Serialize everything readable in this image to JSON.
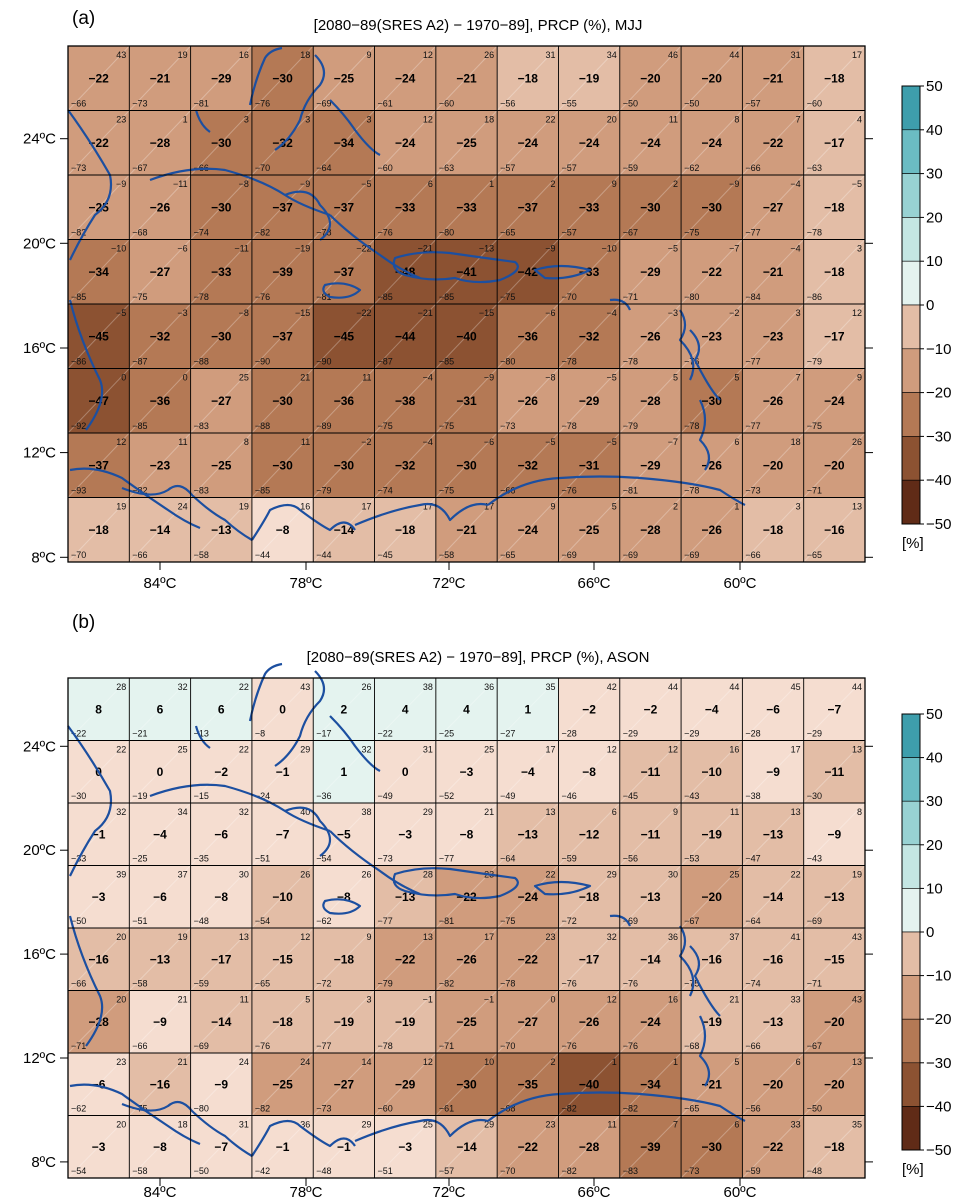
{
  "chart_data": [
    {
      "type": "heatmap",
      "panel_label": "(a)",
      "title": "[2080−89(SRES A2) − 1970−89], PRCP (%), MJJ",
      "x_ticks": [
        "84ºC",
        "78ºC",
        "72ºC",
        "66ºC",
        "60ºC"
      ],
      "y_ticks": [
        "24ºC",
        "20ºC",
        "16ºC",
        "12ºC",
        "8ºC"
      ],
      "mean": [
        [
          -22,
          -21,
          -29,
          -30,
          -25,
          -24,
          -21,
          -18,
          -19,
          -20,
          -20,
          -21,
          -18
        ],
        [
          -22,
          -28,
          -30,
          -32,
          -34,
          -24,
          -25,
          -24,
          -24,
          -24,
          -24,
          -22,
          -17
        ],
        [
          -25,
          -26,
          -30,
          -37,
          -37,
          -33,
          -33,
          -37,
          -33,
          -30,
          -30,
          -27,
          -18
        ],
        [
          -34,
          -27,
          -33,
          -39,
          -37,
          -48,
          -41,
          -42,
          -33,
          -29,
          -22,
          -21,
          -18
        ],
        [
          -45,
          -32,
          -30,
          -37,
          -45,
          -44,
          -40,
          -36,
          -32,
          -26,
          -23,
          -23,
          -17
        ],
        [
          -47,
          -36,
          -27,
          -30,
          -36,
          -38,
          -31,
          -26,
          -29,
          -28,
          -30,
          -26,
          -24
        ],
        [
          -37,
          -23,
          -25,
          -30,
          -30,
          -32,
          -30,
          -32,
          -31,
          -29,
          -26,
          -20,
          -20
        ],
        [
          -18,
          -14,
          -13,
          -8,
          -14,
          -18,
          -21,
          -24,
          -25,
          -28,
          -26,
          -18,
          -16
        ]
      ],
      "max": [
        [
          43,
          19,
          16,
          18,
          9,
          12,
          26,
          31,
          34,
          46,
          44,
          31,
          17
        ],
        [
          23,
          1,
          3,
          3,
          3,
          12,
          18,
          22,
          20,
          11,
          8,
          7,
          4
        ],
        [
          -9,
          -11,
          -8,
          -9,
          -5,
          6,
          1,
          2,
          9,
          2,
          -9,
          -4,
          -5
        ],
        [
          -10,
          -6,
          -11,
          -19,
          -22,
          -21,
          -13,
          -9,
          -10,
          -5,
          -7,
          -4,
          3
        ],
        [
          -5,
          -3,
          -8,
          -15,
          -22,
          -21,
          -15,
          -6,
          -4,
          -3,
          -2,
          3,
          12
        ],
        [
          0,
          0,
          25,
          21,
          11,
          -4,
          -9,
          -8,
          -5,
          5,
          5,
          7,
          9
        ],
        [
          12,
          11,
          8,
          11,
          -2,
          -4,
          -6,
          -5,
          -5,
          -7,
          6,
          18,
          26
        ],
        [
          19,
          24,
          19,
          16,
          17,
          17,
          17,
          9,
          5,
          2,
          1,
          3,
          13
        ]
      ],
      "min": [
        [
          -66,
          -73,
          -81,
          -76,
          -69,
          -61,
          -60,
          -56,
          -55,
          -50,
          -50,
          -57,
          -60
        ],
        [
          -73,
          -67,
          -66,
          -70,
          -64,
          -60,
          -63,
          -57,
          -57,
          -59,
          -62,
          -66,
          -63
        ],
        [
          -82,
          -68,
          -74,
          -82,
          -78,
          -76,
          -80,
          -65,
          -57,
          -67,
          -75,
          -77,
          -78
        ],
        [
          -85,
          -75,
          -78,
          -76,
          -81,
          -85,
          -85,
          -75,
          -70,
          -71,
          -80,
          -84,
          -86
        ],
        [
          -86,
          -87,
          -88,
          -90,
          -90,
          -87,
          -85,
          -80,
          -78,
          -78,
          -76,
          -77,
          -79
        ],
        [
          -92,
          -85,
          -83,
          -88,
          -89,
          -75,
          -75,
          -73,
          -78,
          -79,
          -78,
          -77,
          -75
        ],
        [
          -93,
          -82,
          -83,
          -85,
          -79,
          -74,
          -75,
          -66,
          -76,
          -81,
          -78,
          -73,
          -71
        ],
        [
          -70,
          -66,
          -58,
          -44,
          -44,
          -45,
          -58,
          -65,
          -69,
          -69,
          -69,
          -66,
          -65
        ]
      ],
      "color_scale": {
        "levels": [
          "50",
          "40",
          "30",
          "20",
          "10",
          "0",
          "−10",
          "−20",
          "−30",
          "−40",
          "−50"
        ],
        "unit": "[%]",
        "colors": [
          "#3e9eac",
          "#6bbcc3",
          "#98d2d3",
          "#c4e6e3",
          "#e4f3ef",
          "#f5ddd0",
          "#e3bda6",
          "#d09c7d",
          "#b47955",
          "#8c5232",
          "#602b17"
        ]
      }
    },
    {
      "type": "heatmap",
      "panel_label": "(b)",
      "title": "[2080−89(SRES A2) − 1970−89], PRCP (%), ASON",
      "x_ticks": [
        "84ºC",
        "78ºC",
        "72ºC",
        "66ºC",
        "60ºC"
      ],
      "y_ticks": [
        "24ºC",
        "20ºC",
        "16ºC",
        "12ºC",
        "8ºC"
      ],
      "mean": [
        [
          8,
          6,
          6,
          0,
          2,
          4,
          4,
          1,
          -2,
          -2,
          -4,
          -6,
          -7
        ],
        [
          0,
          0,
          -2,
          -1,
          1,
          0,
          -3,
          -4,
          -8,
          -11,
          -10,
          -9,
          -11
        ],
        [
          -1,
          -4,
          -6,
          -7,
          -5,
          -3,
          -8,
          -13,
          -12,
          -11,
          -19,
          -13,
          -9
        ],
        [
          -3,
          -6,
          -8,
          -10,
          -8,
          -13,
          -22,
          -24,
          -18,
          -13,
          -20,
          -14,
          -13
        ],
        [
          -16,
          -13,
          -17,
          -15,
          -18,
          -22,
          -26,
          -22,
          -17,
          -14,
          -16,
          -16,
          -15
        ],
        [
          -28,
          -9,
          -14,
          -18,
          -19,
          -19,
          -25,
          -27,
          -26,
          -24,
          -19,
          -13,
          -20
        ],
        [
          -6,
          -16,
          -9,
          -25,
          -27,
          -29,
          -30,
          -35,
          -40,
          -34,
          -21,
          -20,
          -20
        ],
        [
          -3,
          -8,
          -7,
          -1,
          -1,
          -3,
          -14,
          -22,
          -28,
          -39,
          -30,
          -22,
          -18
        ]
      ],
      "max": [
        [
          28,
          32,
          22,
          43,
          26,
          38,
          36,
          35,
          42,
          44,
          44,
          45,
          44
        ],
        [
          22,
          25,
          22,
          29,
          32,
          31,
          25,
          17,
          12,
          12,
          16,
          17,
          13
        ],
        [
          32,
          34,
          32,
          40,
          38,
          29,
          21,
          13,
          6,
          9,
          11,
          13,
          8
        ],
        [
          39,
          37,
          30,
          26,
          26,
          28,
          23,
          22,
          29,
          30,
          25,
          22,
          19
        ],
        [
          20,
          19,
          13,
          12,
          9,
          13,
          17,
          23,
          32,
          36,
          37,
          41,
          43
        ],
        [
          20,
          21,
          11,
          5,
          3,
          -1,
          -1,
          0,
          12,
          16,
          21,
          33,
          43
        ],
        [
          23,
          21,
          24,
          24,
          14,
          12,
          10,
          2,
          1,
          1,
          5,
          6,
          13
        ],
        [
          20,
          18,
          31,
          36,
          29,
          25,
          29,
          23,
          11,
          7,
          6,
          33,
          35
        ]
      ],
      "min": [
        [
          -22,
          -21,
          -13,
          -8,
          -17,
          -22,
          -25,
          -27,
          -28,
          -29,
          -29,
          -28,
          -29
        ],
        [
          -30,
          -19,
          -15,
          -24,
          -36,
          -49,
          -52,
          -49,
          -46,
          -45,
          -43,
          -38,
          -30
        ],
        [
          -33,
          -25,
          -35,
          -51,
          -54,
          -73,
          -77,
          -64,
          -59,
          -56,
          -53,
          -47,
          -43
        ],
        [
          -50,
          -51,
          -48,
          -54,
          -62,
          -77,
          -81,
          -75,
          -72,
          -69,
          -67,
          -64,
          -69
        ],
        [
          -66,
          -58,
          -59,
          -65,
          -72,
          -79,
          -82,
          -78,
          -76,
          -76,
          -75,
          -74,
          -71
        ],
        [
          -71,
          -66,
          -69,
          -76,
          -77,
          -78,
          -71,
          -70,
          -76,
          -76,
          -68,
          -66,
          -67
        ],
        [
          -62,
          -75,
          -80,
          -82,
          -73,
          -60,
          -61,
          -68,
          -82,
          -82,
          -65,
          -56,
          -50
        ],
        [
          -54,
          -58,
          -50,
          -42,
          -48,
          -51,
          -57,
          -70,
          -82,
          -83,
          -73,
          -59,
          -48
        ]
      ],
      "color_scale": {
        "levels": [
          "50",
          "40",
          "30",
          "20",
          "10",
          "0",
          "−10",
          "−20",
          "−30",
          "−40",
          "−50"
        ],
        "unit": "[%]",
        "colors": [
          "#3e9eac",
          "#6bbcc3",
          "#98d2d3",
          "#c4e6e3",
          "#e4f3ef",
          "#f5ddd0",
          "#e3bda6",
          "#d09c7d",
          "#b47955",
          "#8c5232",
          "#602b17"
        ]
      }
    }
  ]
}
